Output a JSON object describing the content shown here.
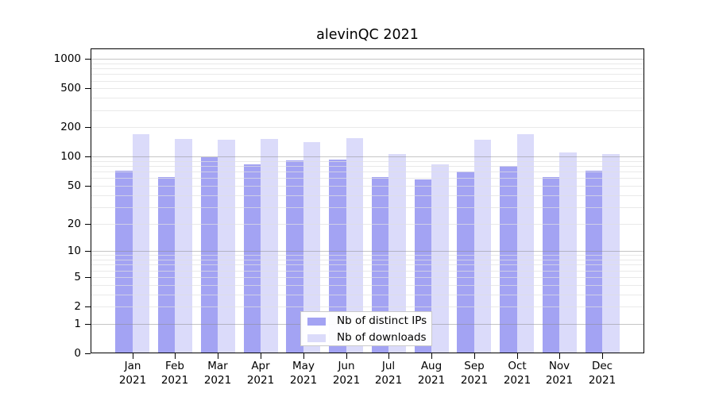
{
  "chart": {
    "colors": {
      "distinct_ips_bar": "#a3a3f3",
      "downloads_bar": "#dbdbfa",
      "grid_major": "#c6c6c6",
      "grid_minor": "#ebebeb",
      "axis": "#000000",
      "text": "#000000",
      "legend_border": "#cacaca",
      "legend_bg": "#ffffff"
    }
  },
  "chart_data": {
    "type": "bar",
    "title": "alevinQC 2021",
    "year": "2021",
    "months": [
      "Jan",
      "Feb",
      "Mar",
      "Apr",
      "May",
      "Jun",
      "Jul",
      "Aug",
      "Sep",
      "Oct",
      "Nov",
      "Dec"
    ],
    "categories": [
      "Jan 2021",
      "Feb 2021",
      "Mar 2021",
      "Apr 2021",
      "May 2021",
      "Jun 2021",
      "Jul 2021",
      "Aug 2021",
      "Sep 2021",
      "Oct 2021",
      "Nov 2021",
      "Dec 2021"
    ],
    "series": [
      {
        "name": "Nb of distinct IPs",
        "color": "#a3a3f3",
        "values": [
          71,
          62,
          98,
          84,
          92,
          93,
          62,
          58,
          70,
          80,
          62,
          72
        ]
      },
      {
        "name": "Nb of downloads",
        "color": "#dbdbfa",
        "values": [
          170,
          152,
          148,
          153,
          142,
          155,
          107,
          83,
          149,
          170,
          111,
          107
        ]
      }
    ],
    "xlabel": "",
    "ylabel": "",
    "y_axis": {
      "scale": "log1p",
      "tick_values": [
        1000,
        500,
        200,
        100,
        50,
        20,
        10,
        5,
        2,
        1,
        0
      ],
      "tick_labels": [
        "1000",
        "500",
        "200",
        "100",
        "50",
        "20",
        "10",
        "5",
        "2",
        "1",
        "0"
      ],
      "major_gridline_values": [
        1,
        10,
        100,
        1000
      ],
      "minor_gridline_values": [
        2,
        3,
        4,
        5,
        6,
        7,
        8,
        9,
        20,
        30,
        40,
        50,
        60,
        70,
        80,
        90,
        200,
        300,
        400,
        500,
        600,
        700,
        800,
        900
      ],
      "range": [
        0,
        1337
      ]
    },
    "grid": true,
    "legend": {
      "position": "bottom-center",
      "entries": [
        "Nb of distinct IPs",
        "Nb of downloads"
      ]
    }
  }
}
